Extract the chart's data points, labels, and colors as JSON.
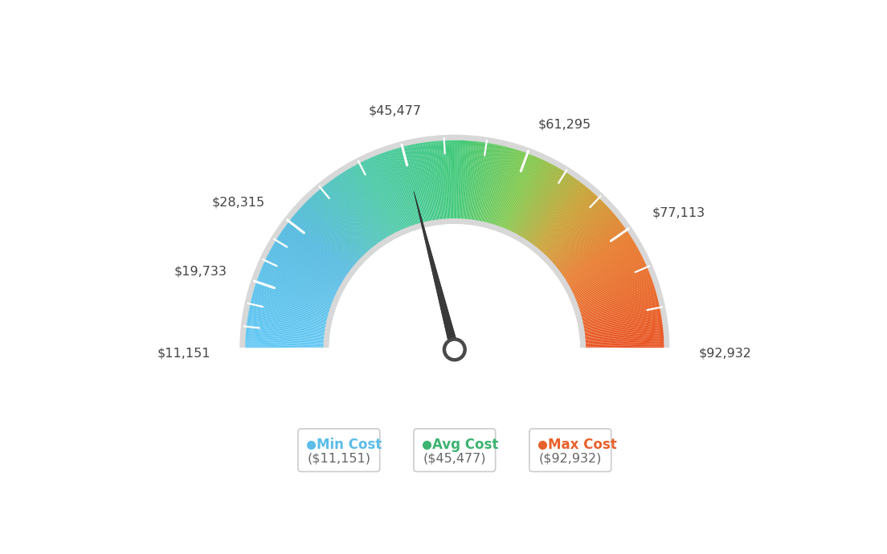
{
  "min_value": 11151,
  "max_value": 92932,
  "avg_value": 45477,
  "labels": {
    "min": "$11,151",
    "v2": "$19,733",
    "v3": "$28,315",
    "avg": "$45,477",
    "v5": "$61,295",
    "v6": "$77,113",
    "max": "$92,932"
  },
  "tick_values": [
    11151,
    19733,
    28315,
    45477,
    61295,
    77113,
    92932
  ],
  "legend": [
    {
      "label": "Min Cost",
      "value": "($11,151)",
      "dot_color": "#5bbde8"
    },
    {
      "label": "Avg Cost",
      "value": "($45,477)",
      "dot_color": "#3cb371"
    },
    {
      "label": "Max Cost",
      "value": "($92,932)",
      "dot_color": "#e8612c"
    }
  ],
  "color_stops": [
    [
      0.0,
      "#62c8f5"
    ],
    [
      0.2,
      "#50b8e0"
    ],
    [
      0.35,
      "#48c8a8"
    ],
    [
      0.5,
      "#3ec878"
    ],
    [
      0.62,
      "#80c84a"
    ],
    [
      0.72,
      "#c8a030"
    ],
    [
      0.82,
      "#e87828"
    ],
    [
      1.0,
      "#e85020"
    ]
  ],
  "background_color": "#ffffff",
  "outer_r": 1.05,
  "inner_r": 0.63,
  "label_colors": [
    "#5bbde8",
    "#3cb371",
    "#e8612c"
  ]
}
